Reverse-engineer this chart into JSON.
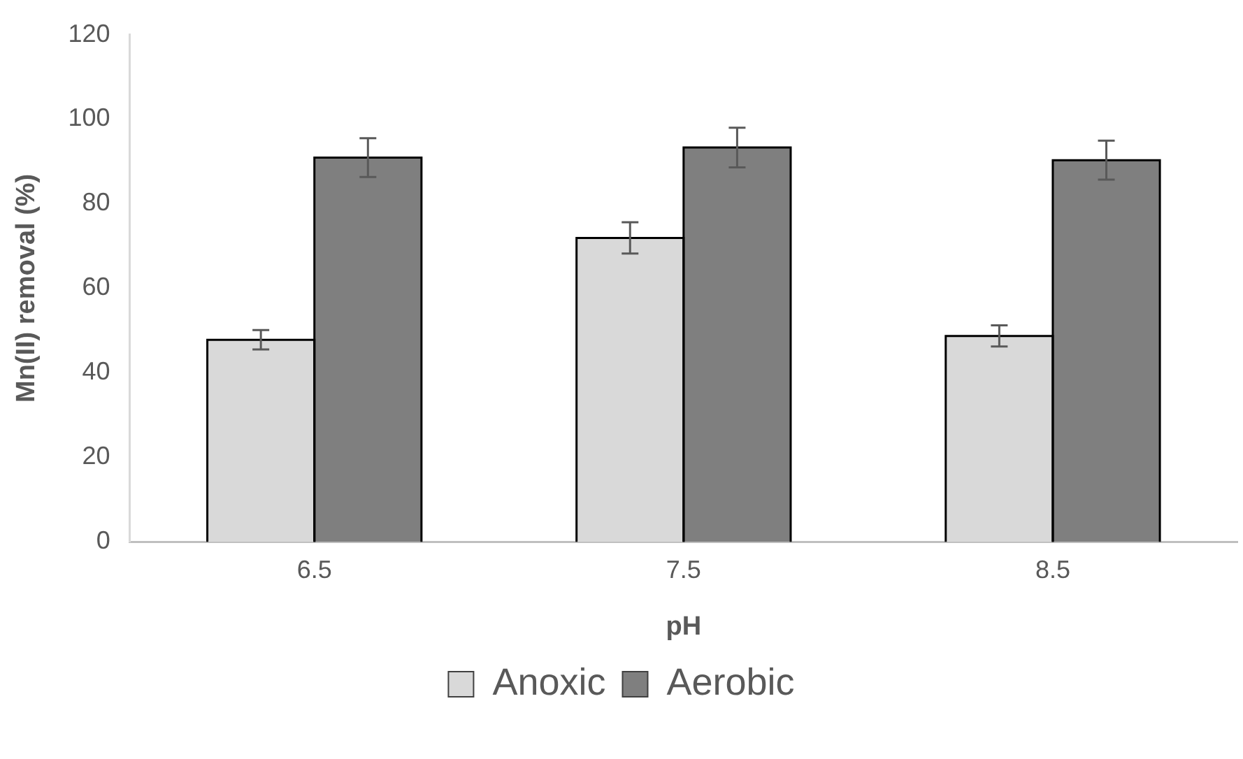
{
  "chart_data": {
    "type": "bar",
    "xlabel": "pH",
    "ylabel": "Mn(II) removal (%)",
    "categories": [
      "6.5",
      "7.5",
      "8.5"
    ],
    "series": [
      {
        "name": "Anoxic",
        "color": "#d9d9d9",
        "values": [
          47.8,
          71.9,
          48.7
        ],
        "errors": [
          2.3,
          3.7,
          2.5
        ]
      },
      {
        "name": "Aerobic",
        "color": "#7f7f7f",
        "values": [
          90.9,
          93.3,
          90.3
        ],
        "errors": [
          4.6,
          4.7,
          4.6
        ]
      }
    ],
    "ylim": [
      0,
      120
    ],
    "yticks": [
      0,
      20,
      40,
      60,
      80,
      100,
      120
    ],
    "grid": false,
    "legend": "bottom"
  }
}
